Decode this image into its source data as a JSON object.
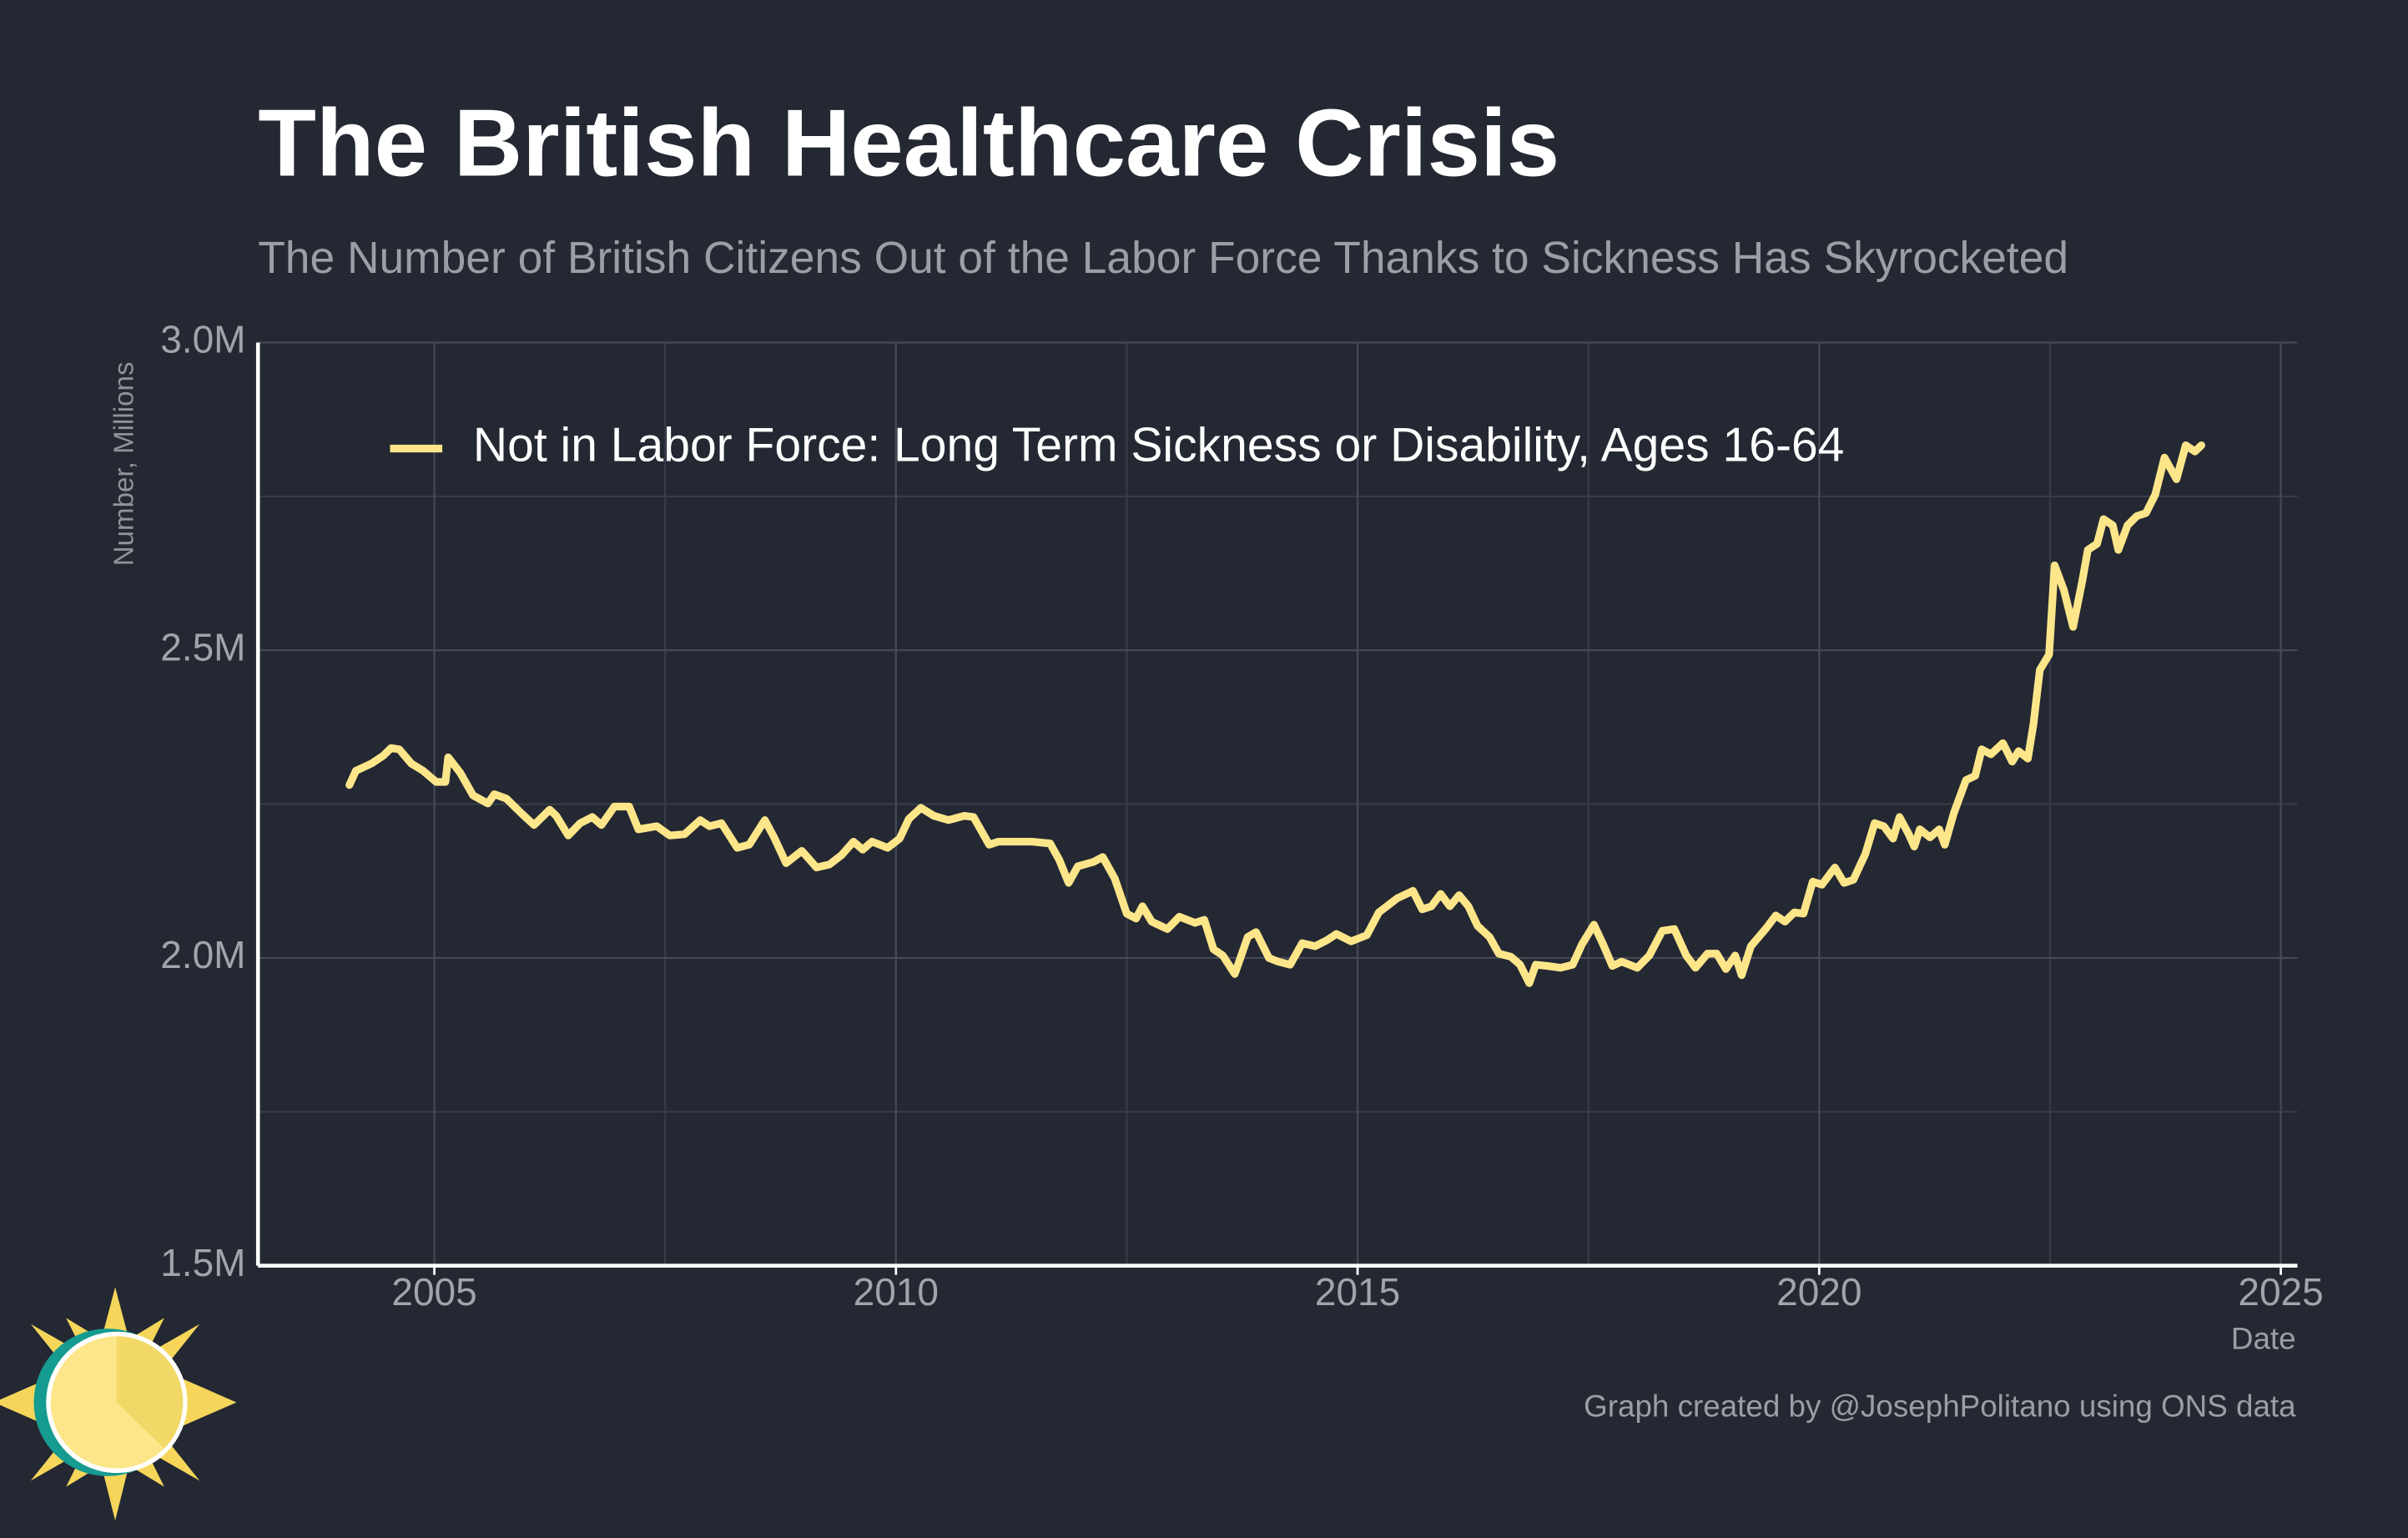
{
  "chart_data": {
    "type": "line",
    "title": "The British Healthcare Crisis",
    "subtitle": "The Number of British Citizens Out of the Labor Force Thanks to Sickness Has Skyrocketed",
    "y_label": "Number, Millions",
    "x_label": "Date",
    "credit": "Graph created by @JosephPolitano using ONS data",
    "xlim": [
      2003.09,
      2025.18
    ],
    "ylim": [
      1.5,
      3.0
    ],
    "xticks": [
      2005,
      2010,
      2015,
      2020,
      2025
    ],
    "yticks": [
      {
        "value": 1.5,
        "label": "1.5M"
      },
      {
        "value": 2.0,
        "label": "2.0M"
      },
      {
        "value": 2.5,
        "label": "2.5M"
      },
      {
        "value": 3.0,
        "label": "3.0M"
      }
    ],
    "x_minor_grid": [
      2007.5,
      2012.5,
      2017.5,
      2022.5
    ],
    "y_minor_grid": [
      1.75,
      2.25,
      2.75
    ],
    "grid": true,
    "legend": "top-left",
    "x": [
      2004.08,
      2004.15,
      2004.32,
      2004.45,
      2004.53,
      2004.62,
      2004.75,
      2004.88,
      2005.02,
      2005.12,
      2005.15,
      2005.28,
      2005.42,
      2005.58,
      2005.65,
      2005.78,
      2005.95,
      2006.08,
      2006.25,
      2006.32,
      2006.45,
      2006.58,
      2006.71,
      2006.81,
      2006.95,
      2007.11,
      2007.21,
      2007.41,
      2007.55,
      2007.71,
      2007.88,
      2007.98,
      2008.11,
      2008.28,
      2008.41,
      2008.58,
      2008.68,
      2008.81,
      2008.98,
      2009.14,
      2009.28,
      2009.41,
      2009.54,
      2009.64,
      2009.74,
      2009.91,
      2010.04,
      2010.14,
      2010.27,
      2010.41,
      2010.57,
      2010.74,
      2010.84,
      2011.01,
      2011.11,
      2011.27,
      2011.47,
      2011.67,
      2011.77,
      2011.87,
      2011.97,
      2012.14,
      2012.24,
      2012.37,
      2012.5,
      2012.6,
      2012.67,
      2012.77,
      2012.94,
      2013.07,
      2013.24,
      2013.34,
      2013.44,
      2013.54,
      2013.67,
      2013.81,
      2013.9,
      2014.04,
      2014.14,
      2014.27,
      2014.4,
      2014.54,
      2014.67,
      2014.77,
      2014.93,
      2015.1,
      2015.23,
      2015.43,
      2015.6,
      2015.7,
      2015.8,
      2015.9,
      2016.0,
      2016.1,
      2016.2,
      2016.3,
      2016.43,
      2016.53,
      2016.66,
      2016.76,
      2016.86,
      2016.93,
      2017.06,
      2017.2,
      2017.33,
      2017.43,
      2017.56,
      2017.66,
      2017.76,
      2017.86,
      2018.03,
      2018.16,
      2018.3,
      2018.43,
      2018.56,
      2018.66,
      2018.79,
      2018.89,
      2018.99,
      2019.09,
      2019.16,
      2019.26,
      2019.43,
      2019.53,
      2019.63,
      2019.73,
      2019.83,
      2019.93,
      2020.03,
      2020.17,
      2020.27,
      2020.37,
      2020.5,
      2020.6,
      2020.7,
      2020.8,
      2020.87,
      2020.97,
      2021.03,
      2021.09,
      2021.2,
      2021.3,
      2021.36,
      2021.46,
      2021.59,
      2021.69,
      2021.76,
      2021.86,
      2021.99,
      2022.09,
      2022.16,
      2022.26,
      2022.32,
      2022.39,
      2022.49,
      2022.55,
      2022.65,
      2022.75,
      2022.85,
      2022.91,
      2023.01,
      2023.08,
      2023.18,
      2023.24,
      2023.34,
      2023.44,
      2023.54,
      2023.64,
      2023.74,
      2023.87,
      2023.97,
      2024.07,
      2024.14
    ],
    "series": [
      {
        "name": "Not in Labor Force: Long Term Sickness or Disability, Ages 16-64",
        "color": "#fde68a",
        "values": [
          2.281,
          2.304,
          2.316,
          2.329,
          2.341,
          2.339,
          2.316,
          2.304,
          2.286,
          2.286,
          2.326,
          2.301,
          2.264,
          2.251,
          2.266,
          2.259,
          2.234,
          2.216,
          2.241,
          2.231,
          2.199,
          2.219,
          2.229,
          2.216,
          2.246,
          2.246,
          2.209,
          2.214,
          2.199,
          2.201,
          2.224,
          2.214,
          2.219,
          2.179,
          2.184,
          2.224,
          2.196,
          2.154,
          2.174,
          2.147,
          2.152,
          2.167,
          2.189,
          2.176,
          2.189,
          2.179,
          2.194,
          2.226,
          2.244,
          2.231,
          2.224,
          2.231,
          2.229,
          2.184,
          2.189,
          2.189,
          2.189,
          2.186,
          2.159,
          2.122,
          2.149,
          2.156,
          2.164,
          2.129,
          2.072,
          2.064,
          2.084,
          2.059,
          2.047,
          2.067,
          2.057,
          2.062,
          2.014,
          2.004,
          1.974,
          2.034,
          2.042,
          2.0,
          1.994,
          1.989,
          2.024,
          2.019,
          2.029,
          2.039,
          2.027,
          2.037,
          2.074,
          2.097,
          2.109,
          2.079,
          2.084,
          2.104,
          2.084,
          2.102,
          2.084,
          2.052,
          2.034,
          2.007,
          2.002,
          1.989,
          1.959,
          1.989,
          1.987,
          1.984,
          1.989,
          2.022,
          2.054,
          2.022,
          1.987,
          1.994,
          1.984,
          2.004,
          2.044,
          2.047,
          2.004,
          1.984,
          2.007,
          2.007,
          1.982,
          2.004,
          1.972,
          2.019,
          2.049,
          2.069,
          2.059,
          2.074,
          2.072,
          2.124,
          2.119,
          2.147,
          2.122,
          2.127,
          2.169,
          2.219,
          2.214,
          2.194,
          2.229,
          2.201,
          2.181,
          2.209,
          2.196,
          2.209,
          2.184,
          2.236,
          2.289,
          2.296,
          2.339,
          2.331,
          2.349,
          2.319,
          2.336,
          2.324,
          2.379,
          2.468,
          2.493,
          2.638,
          2.598,
          2.538,
          2.613,
          2.663,
          2.673,
          2.713,
          2.703,
          2.663,
          2.703,
          2.718,
          2.723,
          2.753,
          2.813,
          2.778,
          2.833,
          2.823,
          2.833
        ]
      }
    ]
  }
}
